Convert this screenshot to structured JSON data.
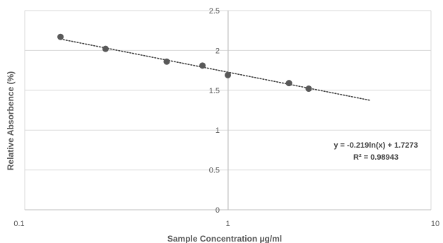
{
  "chart_data": {
    "type": "scatter",
    "x_scale": "log",
    "xlabel": "Sample Concentration µg/ml",
    "ylabel": "Relative Absorbence (%)",
    "xlim": [
      0.1,
      10
    ],
    "ylim": [
      0,
      2.5
    ],
    "x_ticks": [
      "0.1",
      "1",
      "10"
    ],
    "y_ticks": [
      "0",
      "0.5",
      "1",
      "1.5",
      "2",
      "2.5"
    ],
    "grid": true,
    "legend": "none",
    "series": [
      {
        "color": "#595959",
        "points": [
          {
            "x": 0.15,
            "y": 2.17
          },
          {
            "x": 0.25,
            "y": 2.02
          },
          {
            "x": 0.5,
            "y": 1.86
          },
          {
            "x": 0.75,
            "y": 1.81
          },
          {
            "x": 1.0,
            "y": 1.69
          },
          {
            "x": 2.0,
            "y": 1.59
          },
          {
            "x": 2.5,
            "y": 1.52
          }
        ]
      }
    ],
    "trendline": {
      "type": "logarithmic",
      "a": -0.219,
      "b": 1.7273,
      "x_range": [
        0.15,
        5
      ],
      "style": "dotted",
      "color": "#404040"
    },
    "annotations": {
      "equation": "y = -0.219ln(x) + 1.7273",
      "r_squared": "R² = 0.98943"
    }
  }
}
